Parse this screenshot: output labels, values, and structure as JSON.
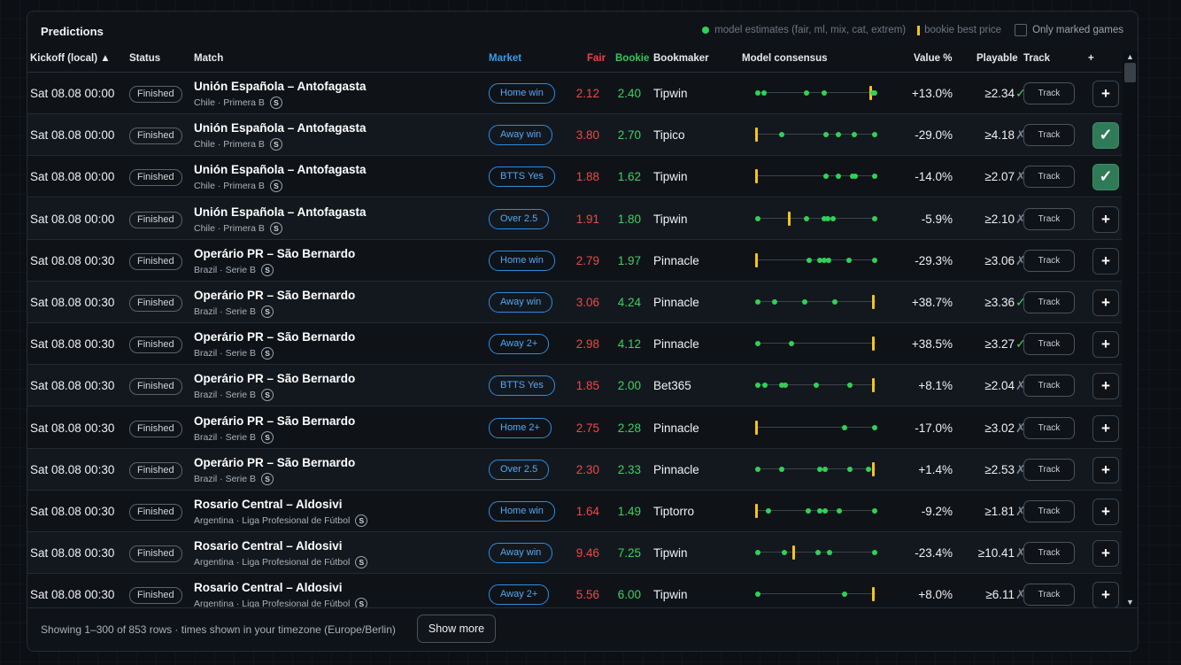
{
  "panel": {
    "title": "Predictions",
    "legend": {
      "model_label": "model estimates (fair, ml, mix, cat, extrem)",
      "bookie_label": "bookie best price",
      "only_marked_label": "Only marked games"
    }
  },
  "columns": {
    "kickoff": "Kickoff (local) ▲",
    "status": "Status",
    "match": "Match",
    "market": "Market",
    "fair": "Fair",
    "bookie": "Bookie",
    "bookmaker": "Bookmaker",
    "consensus": "Model consensus",
    "value": "Value %",
    "playable": "Playable",
    "track": "Track",
    "add": "+"
  },
  "colors": {
    "fair": "#e94a4a",
    "bookie": "#3fcf62",
    "market": "#2f8be0",
    "model_dot": "#31d156",
    "bookie_bar": "#f5c518",
    "marked": "#2f7a57"
  },
  "rows": [
    {
      "kickoff": "Sat 08.08 00:00",
      "status": "Finished",
      "match": "Unión Española – Antofagasta",
      "league": "Chile · Primera B",
      "badge": "S",
      "market": "Home win",
      "fair": "2.12",
      "bookie": "2.40",
      "bookmaker": "Tipwin",
      "value": "+13.0%",
      "playable": "≥2.34",
      "playable_ok": true,
      "track": "Track",
      "marked": false,
      "dots": [
        0.02,
        0.07,
        0.43,
        0.57,
        0.98,
        0.99
      ],
      "bookie_bar": 0.96
    },
    {
      "kickoff": "Sat 08.08 00:00",
      "status": "Finished",
      "match": "Unión Española – Antofagasta",
      "league": "Chile · Primera B",
      "badge": "S",
      "market": "Away win",
      "fair": "3.80",
      "bookie": "2.70",
      "bookmaker": "Tipico",
      "value": "-29.0%",
      "playable": "≥4.18",
      "playable_ok": false,
      "track": "Track",
      "marked": true,
      "dots": [
        0.22,
        0.59,
        0.69,
        0.82,
        0.99
      ],
      "bookie_bar": 0.01
    },
    {
      "kickoff": "Sat 08.08 00:00",
      "status": "Finished",
      "match": "Unión Española – Antofagasta",
      "league": "Chile · Primera B",
      "badge": "S",
      "market": "BTTS Yes",
      "fair": "1.88",
      "bookie": "1.62",
      "bookmaker": "Tipwin",
      "value": "-14.0%",
      "playable": "≥2.07",
      "playable_ok": false,
      "track": "Track",
      "marked": true,
      "dots": [
        0.59,
        0.69,
        0.81,
        0.83,
        0.99
      ],
      "bookie_bar": 0.01
    },
    {
      "kickoff": "Sat 08.08 00:00",
      "status": "Finished",
      "match": "Unión Española – Antofagasta",
      "league": "Chile · Primera B",
      "badge": "S",
      "market": "Over 2.5",
      "fair": "1.91",
      "bookie": "1.80",
      "bookmaker": "Tipwin",
      "value": "-5.9%",
      "playable": "≥2.10",
      "playable_ok": false,
      "track": "Track",
      "marked": false,
      "dots": [
        0.02,
        0.43,
        0.57,
        0.6,
        0.65,
        0.99
      ],
      "bookie_bar": 0.28
    },
    {
      "kickoff": "Sat 08.08 00:30",
      "status": "Finished",
      "match": "Operário PR – São Bernardo",
      "league": "Brazil · Serie B",
      "badge": "S",
      "market": "Home win",
      "fair": "2.79",
      "bookie": "1.97",
      "bookmaker": "Pinnacle",
      "value": "-29.3%",
      "playable": "≥3.06",
      "playable_ok": false,
      "track": "Track",
      "marked": false,
      "dots": [
        0.45,
        0.54,
        0.57,
        0.61,
        0.78,
        0.99
      ],
      "bookie_bar": 0.01
    },
    {
      "kickoff": "Sat 08.08 00:30",
      "status": "Finished",
      "match": "Operário PR – São Bernardo",
      "league": "Brazil · Serie B",
      "badge": "S",
      "market": "Away win",
      "fair": "3.06",
      "bookie": "4.24",
      "bookmaker": "Pinnacle",
      "value": "+38.7%",
      "playable": "≥3.36",
      "playable_ok": true,
      "track": "Track",
      "marked": false,
      "dots": [
        0.02,
        0.16,
        0.41,
        0.66
      ],
      "bookie_bar": 0.98
    },
    {
      "kickoff": "Sat 08.08 00:30",
      "status": "Finished",
      "match": "Operário PR – São Bernardo",
      "league": "Brazil · Serie B",
      "badge": "S",
      "market": "Away 2+",
      "fair": "2.98",
      "bookie": "4.12",
      "bookmaker": "Pinnacle",
      "value": "+38.5%",
      "playable": "≥3.27",
      "playable_ok": true,
      "track": "Track",
      "marked": false,
      "dots": [
        0.02,
        0.3
      ],
      "bookie_bar": 0.98
    },
    {
      "kickoff": "Sat 08.08 00:30",
      "status": "Finished",
      "match": "Operário PR – São Bernardo",
      "league": "Brazil · Serie B",
      "badge": "S",
      "market": "BTTS Yes",
      "fair": "1.85",
      "bookie": "2.00",
      "bookmaker": "Bet365",
      "value": "+8.1%",
      "playable": "≥2.04",
      "playable_ok": false,
      "track": "Track",
      "marked": false,
      "dots": [
        0.02,
        0.08,
        0.22,
        0.25,
        0.51,
        0.79
      ],
      "bookie_bar": 0.98
    },
    {
      "kickoff": "Sat 08.08 00:30",
      "status": "Finished",
      "match": "Operário PR – São Bernardo",
      "league": "Brazil · Serie B",
      "badge": "S",
      "market": "Home 2+",
      "fair": "2.75",
      "bookie": "2.28",
      "bookmaker": "Pinnacle",
      "value": "-17.0%",
      "playable": "≥3.02",
      "playable_ok": false,
      "track": "Track",
      "marked": false,
      "dots": [
        0.74,
        0.99
      ],
      "bookie_bar": 0.01
    },
    {
      "kickoff": "Sat 08.08 00:30",
      "status": "Finished",
      "match": "Operário PR – São Bernardo",
      "league": "Brazil · Serie B",
      "badge": "S",
      "market": "Over 2.5",
      "fair": "2.30",
      "bookie": "2.33",
      "bookmaker": "Pinnacle",
      "value": "+1.4%",
      "playable": "≥2.53",
      "playable_ok": false,
      "track": "Track",
      "marked": false,
      "dots": [
        0.02,
        0.22,
        0.54,
        0.58,
        0.79,
        0.94
      ],
      "bookie_bar": 0.98
    },
    {
      "kickoff": "Sat 08.08 00:30",
      "status": "Finished",
      "match": "Rosario Central – Aldosivi",
      "league": "Argentina · Liga Profesional de Fútbol",
      "badge": "S",
      "market": "Home win",
      "fair": "1.64",
      "bookie": "1.49",
      "bookmaker": "Tiptorro",
      "value": "-9.2%",
      "playable": "≥1.81",
      "playable_ok": false,
      "track": "Track",
      "marked": false,
      "dots": [
        0.11,
        0.44,
        0.54,
        0.58,
        0.7,
        0.99
      ],
      "bookie_bar": 0.01
    },
    {
      "kickoff": "Sat 08.08 00:30",
      "status": "Finished",
      "match": "Rosario Central – Aldosivi",
      "league": "Argentina · Liga Profesional de Fútbol",
      "badge": "S",
      "market": "Away win",
      "fair": "9.46",
      "bookie": "7.25",
      "bookmaker": "Tipwin",
      "value": "-23.4%",
      "playable": "≥10.41",
      "playable_ok": false,
      "track": "Track",
      "marked": false,
      "dots": [
        0.02,
        0.24,
        0.52,
        0.62,
        0.99
      ],
      "bookie_bar": 0.32
    },
    {
      "kickoff": "Sat 08.08 00:30",
      "status": "Finished",
      "match": "Rosario Central – Aldosivi",
      "league": "Argentina · Liga Profesional de Fútbol",
      "badge": "S",
      "market": "Away 2+",
      "fair": "5.56",
      "bookie": "6.00",
      "bookmaker": "Tipwin",
      "value": "+8.0%",
      "playable": "≥6.11",
      "playable_ok": false,
      "track": "Track",
      "marked": false,
      "dots": [
        0.02,
        0.74
      ],
      "bookie_bar": 0.98
    }
  ],
  "marks": {
    "ok": "✓",
    "no": "✗",
    "add": "+",
    "marked": "✓"
  },
  "scroll": {
    "up": "▲",
    "down": "▼"
  },
  "footer": {
    "text": "Showing 1–300 of 853 rows · times shown in your timezone (Europe/Berlin)",
    "show_more": "Show more"
  }
}
